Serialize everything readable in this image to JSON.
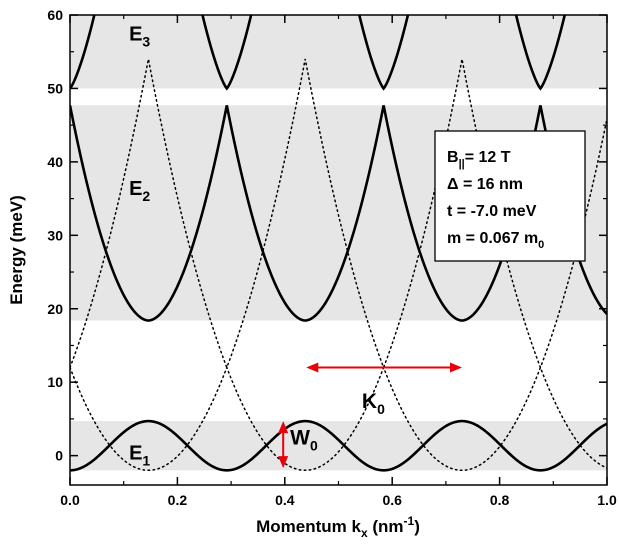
{
  "chart_data": {
    "type": "line",
    "xlabel": "Momentum k",
    "xlabel_sub": "x",
    "xlabel_unit": " (nm",
    "xlabel_unit_sup": "-1",
    "xlabel_unit_close": ")",
    "ylabel": "Energy (meV)",
    "xlim": [
      0,
      1.0
    ],
    "ylim": [
      -4,
      60
    ],
    "xticks": [
      0.0,
      0.2,
      0.4,
      0.6,
      0.8,
      1.0
    ],
    "xtick_labels": [
      "0.0",
      "0.2",
      "0.4",
      "0.6",
      "0.8",
      "1.0"
    ],
    "yticks": [
      0,
      10,
      20,
      30,
      40,
      50,
      60
    ],
    "ytick_labels": [
      "0",
      "10",
      "20",
      "30",
      "40",
      "50",
      "60"
    ],
    "shaded_bands": [
      {
        "ymin": -2,
        "ymax": 4.7
      },
      {
        "ymin": 18.4,
        "ymax": 47.7
      },
      {
        "ymin": 50,
        "ymax": 60
      }
    ],
    "parameters": {
      "period_nm_inv": 0.292,
      "band_E1": {
        "min": -2,
        "max": 4.7
      },
      "band_E2": {
        "min": 18.4,
        "max": 47.7
      },
      "band_E3_min": 50,
      "parabola_crossing_energy": 12
    },
    "band_labels": [
      {
        "text": "E",
        "sub": "1",
        "x": 0.11,
        "y": -0.5
      },
      {
        "text": "E",
        "sub": "2",
        "x": 0.11,
        "y": 35.5
      },
      {
        "text": "E",
        "sub": "3",
        "x": 0.11,
        "y": 56.5
      }
    ],
    "annotations": {
      "K0": {
        "text": "K",
        "sub": "0",
        "x1": 0.44,
        "x2": 0.73,
        "y": 12,
        "label_x": 0.565,
        "label_y": 6.5
      },
      "W0": {
        "text": "W",
        "sub": "0",
        "x": 0.397,
        "y1": -1.7,
        "y2": 4.7,
        "label_x": 0.41,
        "label_y": 1.5
      }
    },
    "legend_box": {
      "placement": "top-right",
      "lines": [
        {
          "main": "B",
          "sub": "||",
          "rest": "= 12 T"
        },
        {
          "main": "Δ = 16 nm"
        },
        {
          "main": "t = -7.0 meV"
        },
        {
          "main": "m = 0.067 m",
          "sub": "0"
        }
      ]
    },
    "colors": {
      "band_fill": "#e6e6e6",
      "curve": "#000000",
      "annotation_arrow": "#e8000b"
    }
  }
}
